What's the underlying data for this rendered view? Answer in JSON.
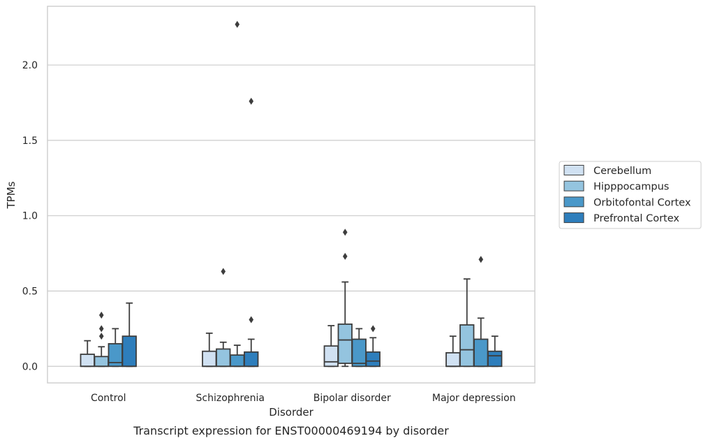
{
  "chart_data": {
    "type": "boxplot",
    "title": "",
    "caption": "Transcript expression for ENST00000469194 by disorder",
    "xlabel": "Disorder",
    "ylabel": "TPMs",
    "ylim": [
      -0.11,
      2.39
    ],
    "yticks": [
      "0.0",
      "0.5",
      "1.0",
      "1.5",
      "2.0"
    ],
    "ytick_values": [
      0.0,
      0.5,
      1.0,
      1.5,
      2.0
    ],
    "grid": "horizontal",
    "legend_position": "right",
    "categories": [
      "Control",
      "Schizophrenia",
      "Bipolar disorder",
      "Major depression"
    ],
    "series": [
      {
        "name": "Cerebellum",
        "color": "#d0e1f2",
        "boxes": [
          {
            "min": 0.0,
            "q1": 0.0,
            "median": 0.0,
            "q3": 0.08,
            "max": 0.17,
            "outliers": []
          },
          {
            "min": 0.0,
            "q1": 0.0,
            "median": 0.0,
            "q3": 0.1,
            "max": 0.22,
            "outliers": []
          },
          {
            "min": 0.0,
            "q1": 0.0,
            "median": 0.03,
            "q3": 0.135,
            "max": 0.27,
            "outliers": []
          },
          {
            "min": 0.0,
            "q1": 0.0,
            "median": 0.0,
            "q3": 0.09,
            "max": 0.2,
            "outliers": []
          }
        ]
      },
      {
        "name": "Hipppocampus",
        "color": "#94c4df",
        "boxes": [
          {
            "min": 0.0,
            "q1": 0.0,
            "median": 0.0,
            "q3": 0.065,
            "max": 0.13,
            "outliers": [
              0.2,
              0.25,
              0.34
            ]
          },
          {
            "min": 0.0,
            "q1": 0.0,
            "median": 0.0,
            "q3": 0.115,
            "max": 0.16,
            "outliers": [
              0.63
            ]
          },
          {
            "min": 0.0,
            "q1": 0.02,
            "median": 0.175,
            "q3": 0.28,
            "max": 0.56,
            "outliers": [
              0.73,
              0.89
            ]
          },
          {
            "min": 0.0,
            "q1": 0.0,
            "median": 0.11,
            "q3": 0.275,
            "max": 0.58,
            "outliers": []
          }
        ]
      },
      {
        "name": "Orbitofontal Cortex",
        "color": "#4a98c9",
        "boxes": [
          {
            "min": 0.0,
            "q1": 0.0,
            "median": 0.025,
            "q3": 0.15,
            "max": 0.25,
            "outliers": []
          },
          {
            "min": 0.0,
            "q1": 0.0,
            "median": 0.0,
            "q3": 0.075,
            "max": 0.14,
            "outliers": [
              2.27
            ]
          },
          {
            "min": 0.0,
            "q1": 0.0,
            "median": 0.02,
            "q3": 0.18,
            "max": 0.25,
            "outliers": []
          },
          {
            "min": 0.0,
            "q1": 0.0,
            "median": 0.0,
            "q3": 0.18,
            "max": 0.32,
            "outliers": [
              0.71
            ]
          }
        ]
      },
      {
        "name": "Prefrontal Cortex",
        "color": "#2e7ebc",
        "boxes": [
          {
            "min": 0.0,
            "q1": 0.0,
            "median": 0.0,
            "q3": 0.2,
            "max": 0.42,
            "outliers": []
          },
          {
            "min": 0.0,
            "q1": 0.0,
            "median": 0.0,
            "q3": 0.095,
            "max": 0.18,
            "outliers": [
              0.31,
              1.76
            ]
          },
          {
            "min": 0.0,
            "q1": 0.0,
            "median": 0.035,
            "q3": 0.095,
            "max": 0.19,
            "outliers": [
              0.25
            ]
          },
          {
            "min": 0.0,
            "q1": 0.0,
            "median": 0.07,
            "q3": 0.1,
            "max": 0.2,
            "outliers": []
          }
        ]
      }
    ]
  }
}
